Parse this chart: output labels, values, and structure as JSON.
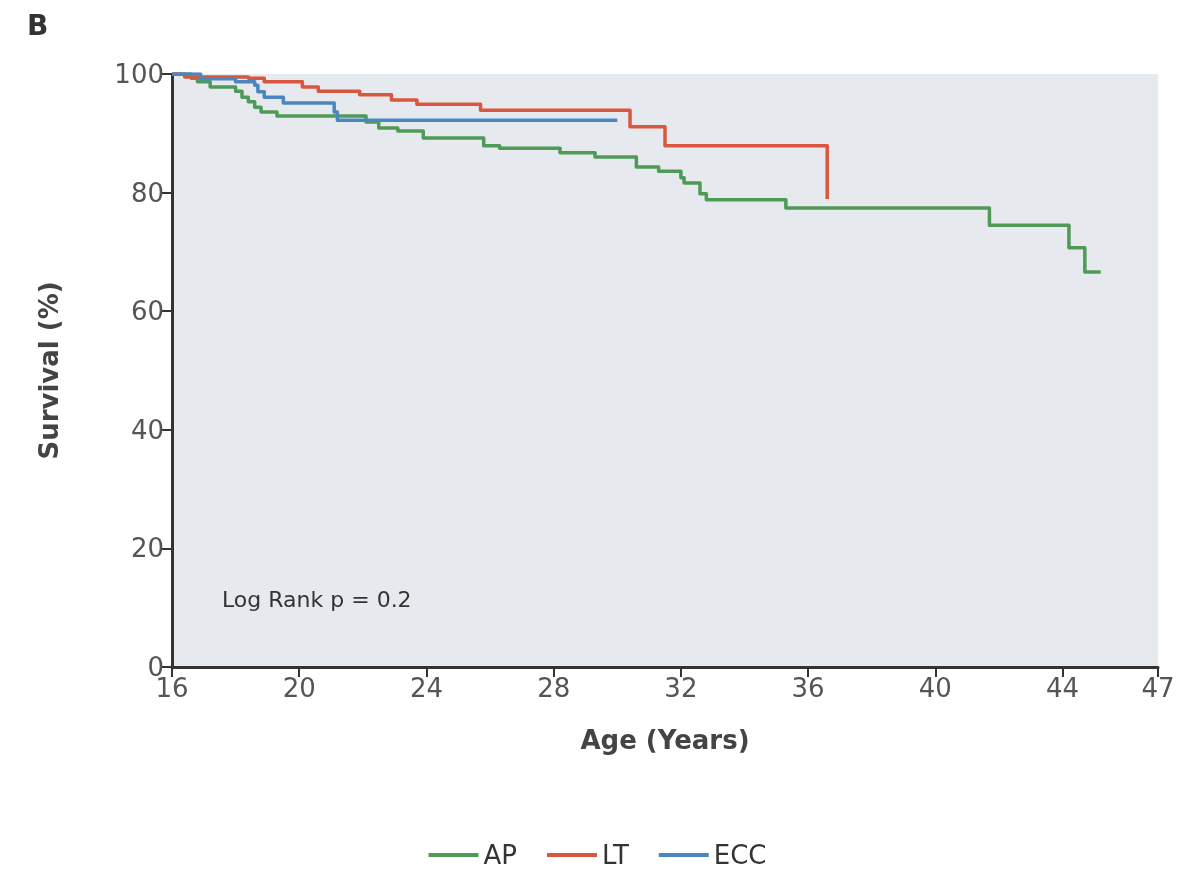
{
  "chart_data": {
    "type": "step",
    "title": "B",
    "xlabel": "Age (Years)",
    "ylabel": "Survival (%)",
    "annotations": [
      "Log Rank p = 0.2"
    ],
    "series": [
      {
        "name": "AP",
        "color": "#4e9a56",
        "x": [
          16,
          16.6,
          16.8,
          17.2,
          18,
          18.2,
          18.4,
          18.6,
          18.8,
          19.3,
          22.1,
          22.5,
          23.1,
          23.9,
          25.8,
          26.3,
          28.2,
          29.3,
          30.6,
          31.3,
          32,
          32.1,
          32.6,
          32.8,
          35.3,
          41.7,
          44.2,
          44.7,
          45.2
        ],
        "values": [
          100,
          99.3,
          98.7,
          97.8,
          97.1,
          96.1,
          95.3,
          94.4,
          93.6,
          92.9,
          91.9,
          90.9,
          90.4,
          89.2,
          87.9,
          87.5,
          86.7,
          86,
          84.3,
          83.6,
          82.5,
          81.6,
          79.8,
          78.8,
          77.4,
          74.5,
          70.7,
          66.6,
          66.6
        ]
      },
      {
        "name": "LT",
        "color": "#d9573e",
        "x": [
          16,
          16.4,
          18.4,
          18.9,
          20.1,
          20.6,
          21.9,
          22.9,
          23.7,
          25.7,
          30.4,
          31.5,
          36.6
        ],
        "values": [
          100,
          99.5,
          99.3,
          98.7,
          97.8,
          97.1,
          96.5,
          95.6,
          94.9,
          93.9,
          91.1,
          87.9,
          78.9
        ]
      },
      {
        "name": "ECC",
        "color": "#4a86c0",
        "x": [
          16,
          16.9,
          18,
          18.6,
          18.7,
          18.9,
          19.5,
          21.1,
          21.2,
          30
        ],
        "values": [
          100,
          99.2,
          98.7,
          98.1,
          97,
          96.1,
          95.1,
          93.6,
          92.2,
          92.2
        ]
      }
    ],
    "xlim": [
      16,
      47
    ],
    "xticks": [
      16,
      20,
      24,
      28,
      32,
      36,
      40,
      44,
      47
    ],
    "ylim": [
      0,
      100
    ],
    "yticks": [
      0,
      20,
      40,
      60,
      80,
      100
    ],
    "grid": false,
    "legend": "bottom",
    "marker": "none",
    "line_style": "solid"
  }
}
